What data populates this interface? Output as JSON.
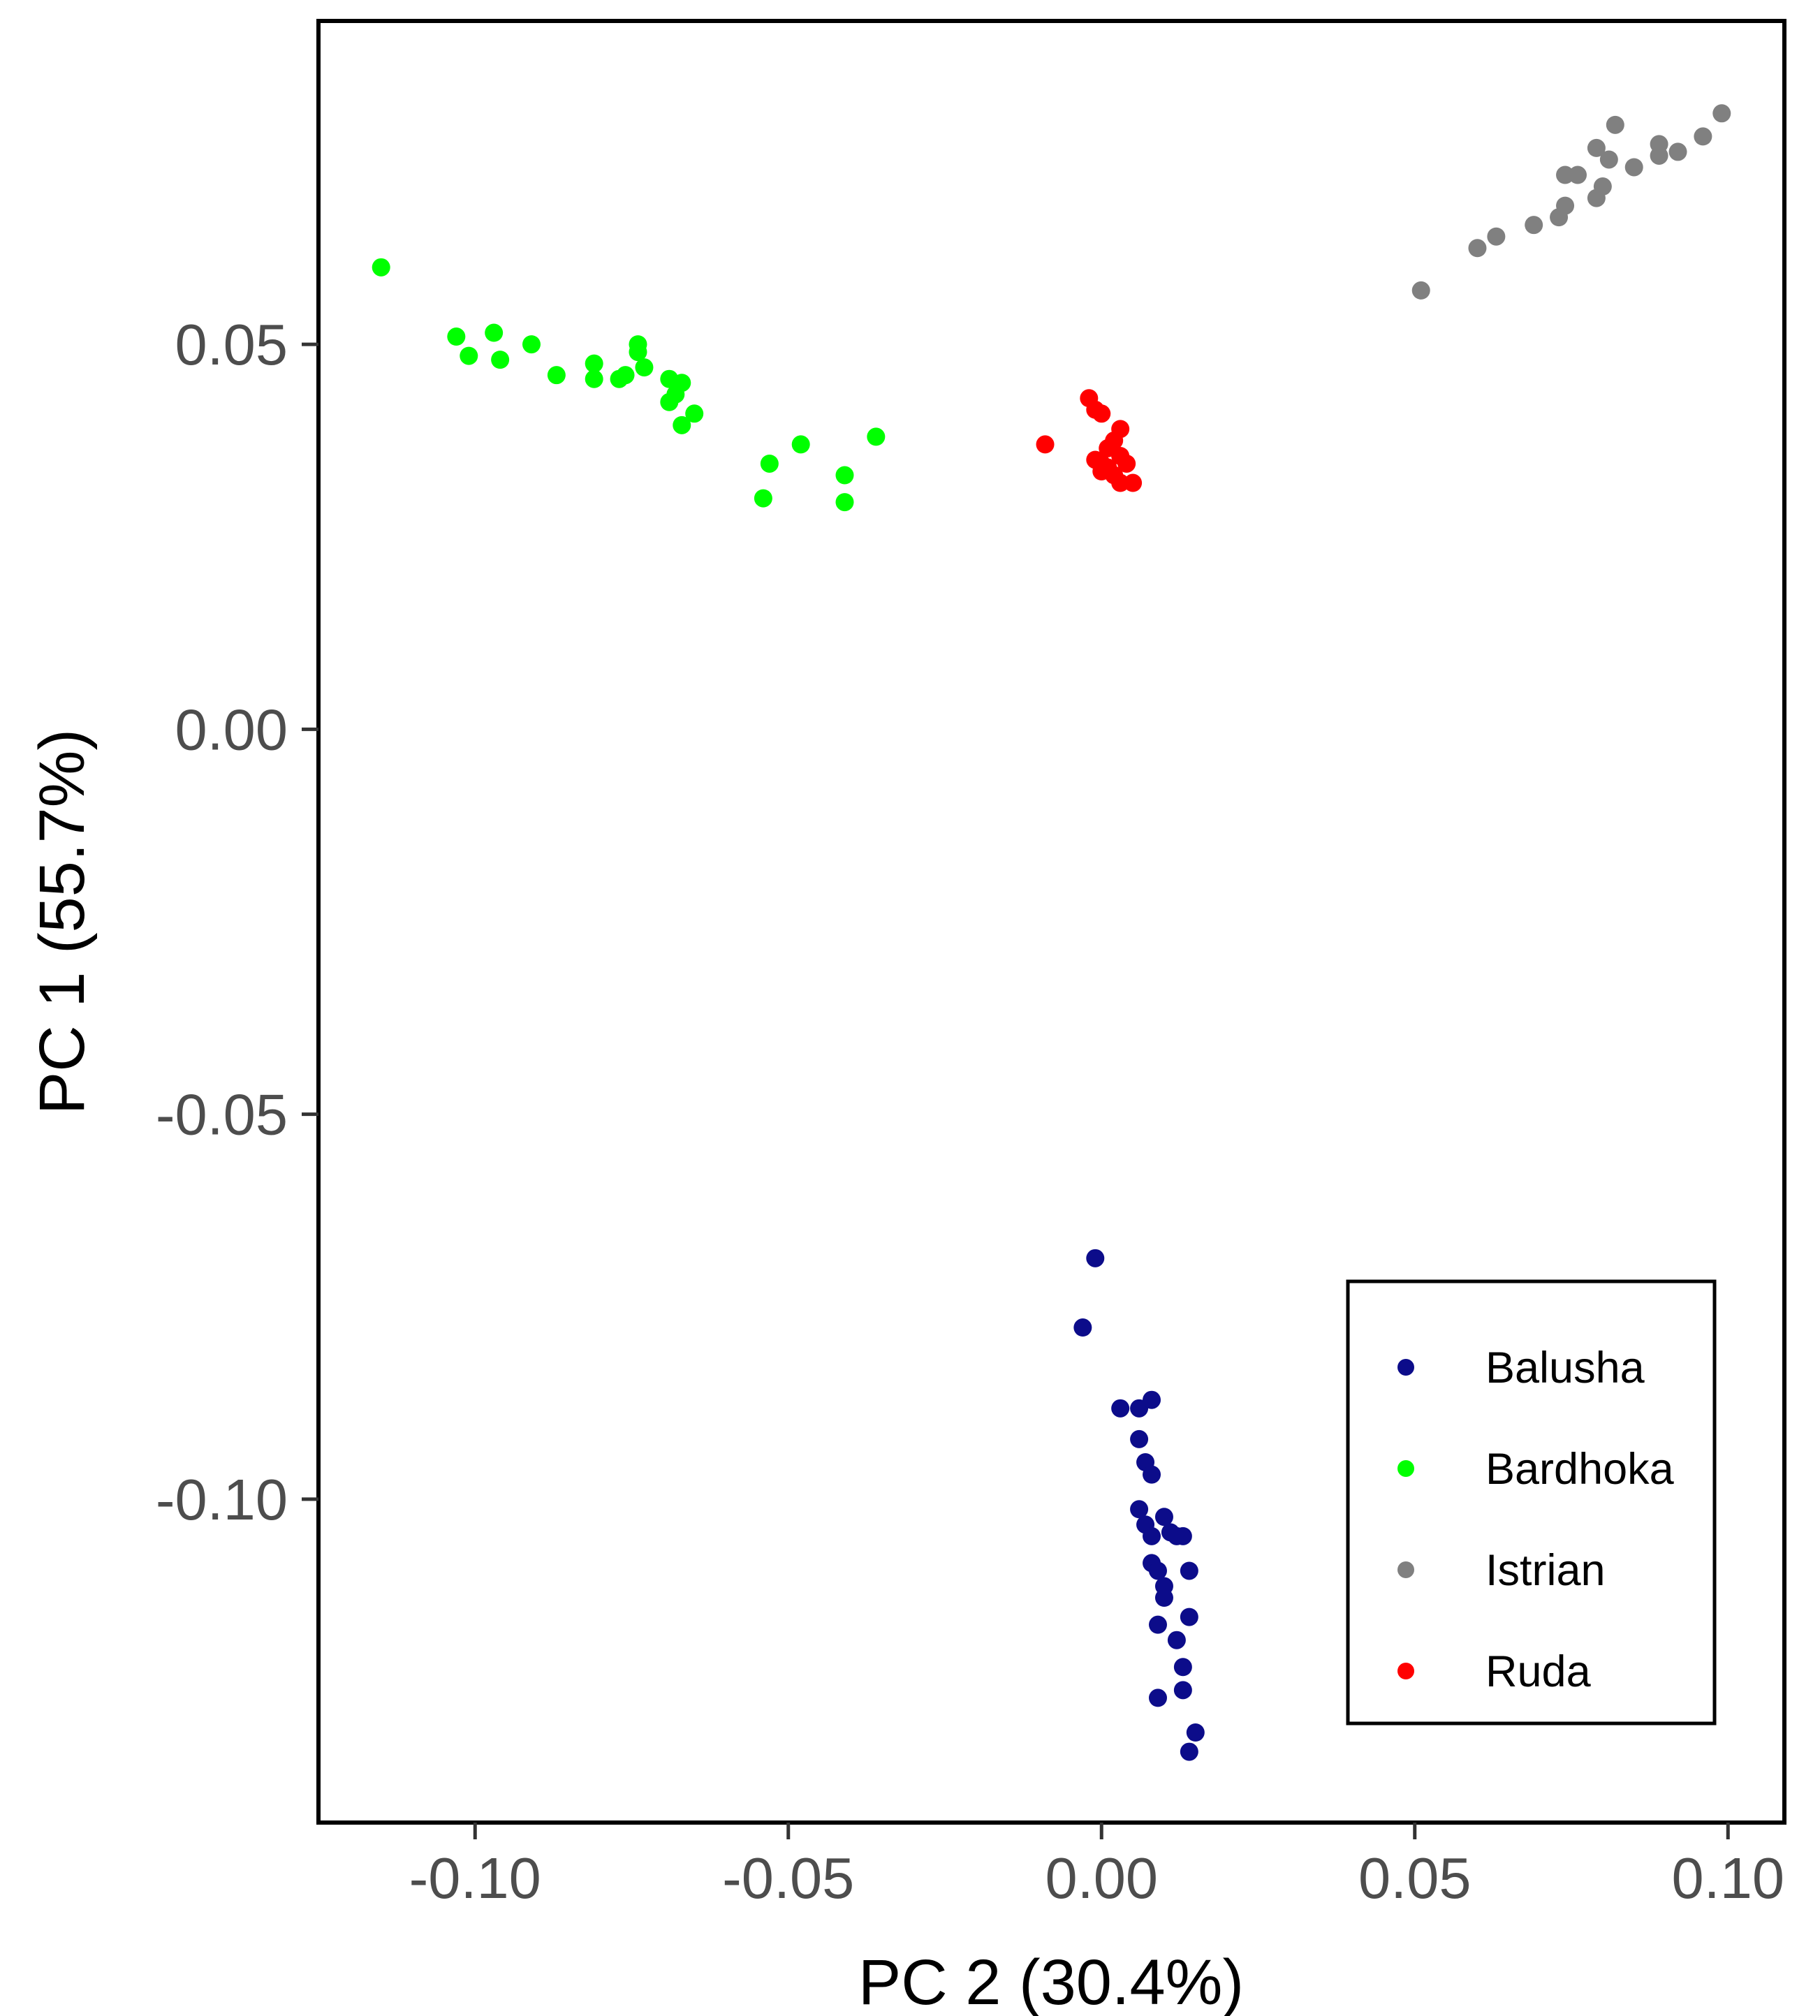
{
  "chart_data": {
    "type": "scatter",
    "title": "",
    "xlabel": "PC 2 (30.4%)",
    "ylabel": "PC 1 (55.7%)",
    "xlim": [
      -0.125,
      0.109
    ],
    "ylim": [
      -0.142,
      0.092
    ],
    "xticks": [
      -0.1,
      -0.05,
      0.0,
      0.05,
      0.1
    ],
    "yticks": [
      0.05,
      0.0,
      -0.05,
      -0.1
    ],
    "xtick_labels": [
      "-0.10",
      "-0.05",
      "0.00",
      "0.05",
      "0.10"
    ],
    "ytick_labels": [
      "0.05",
      "0.00",
      "-0.05",
      "-0.10"
    ],
    "grid": false,
    "legend_position": "bottom-right",
    "series": [
      {
        "name": "Balusha",
        "color": "#0c0c8a",
        "points": [
          [
            -0.001,
            -0.0687
          ],
          [
            -0.003,
            -0.0777
          ],
          [
            0.003,
            -0.0882
          ],
          [
            0.006,
            -0.0882
          ],
          [
            0.008,
            -0.0871
          ],
          [
            0.006,
            -0.0922
          ],
          [
            0.007,
            -0.0952
          ],
          [
            0.008,
            -0.0968
          ],
          [
            0.006,
            -0.1013
          ],
          [
            0.01,
            -0.1023
          ],
          [
            0.007,
            -0.1033
          ],
          [
            0.011,
            -0.1043
          ],
          [
            0.008,
            -0.1048
          ],
          [
            0.012,
            -0.1048
          ],
          [
            0.013,
            -0.1048
          ],
          [
            0.008,
            -0.1083
          ],
          [
            0.009,
            -0.1093
          ],
          [
            0.014,
            -0.1093
          ],
          [
            0.01,
            -0.1113
          ],
          [
            0.01,
            -0.1128
          ],
          [
            0.014,
            -0.1153
          ],
          [
            0.009,
            -0.1163
          ],
          [
            0.012,
            -0.1183
          ],
          [
            0.013,
            -0.1218
          ],
          [
            0.009,
            -0.1258
          ],
          [
            0.013,
            -0.1248
          ],
          [
            0.015,
            -0.1303
          ],
          [
            0.014,
            -0.1328
          ]
        ]
      },
      {
        "name": "Bardhoka",
        "color": "#00ff00",
        "points": [
          [
            -0.115,
            0.06
          ],
          [
            -0.103,
            0.051
          ],
          [
            -0.101,
            0.0485
          ],
          [
            -0.097,
            0.0515
          ],
          [
            -0.096,
            0.048
          ],
          [
            -0.091,
            0.05
          ],
          [
            -0.087,
            0.046
          ],
          [
            -0.081,
            0.0475
          ],
          [
            -0.081,
            0.0455
          ],
          [
            -0.077,
            0.0455
          ],
          [
            -0.076,
            0.046
          ],
          [
            -0.074,
            0.05
          ],
          [
            -0.074,
            0.049
          ],
          [
            -0.073,
            0.047
          ],
          [
            -0.069,
            0.0455
          ],
          [
            -0.067,
            0.045
          ],
          [
            -0.069,
            0.0425
          ],
          [
            -0.068,
            0.0435
          ],
          [
            -0.067,
            0.0395
          ],
          [
            -0.065,
            0.041
          ],
          [
            -0.054,
            0.03
          ],
          [
            -0.053,
            0.0345
          ],
          [
            -0.048,
            0.037
          ],
          [
            -0.041,
            0.033
          ],
          [
            -0.041,
            0.0295
          ],
          [
            -0.036,
            0.038
          ]
        ]
      },
      {
        "name": "Istrian",
        "color": "#808080",
        "points": [
          [
            0.051,
            0.057
          ],
          [
            0.06,
            0.0625
          ],
          [
            0.063,
            0.064
          ],
          [
            0.069,
            0.0655
          ],
          [
            0.073,
            0.0665
          ],
          [
            0.074,
            0.068
          ],
          [
            0.074,
            0.072
          ],
          [
            0.076,
            0.072
          ],
          [
            0.079,
            0.069
          ],
          [
            0.08,
            0.0705
          ],
          [
            0.079,
            0.0755
          ],
          [
            0.081,
            0.074
          ],
          [
            0.082,
            0.0785
          ],
          [
            0.085,
            0.073
          ],
          [
            0.089,
            0.076
          ],
          [
            0.089,
            0.0745
          ],
          [
            0.092,
            0.075
          ],
          [
            0.096,
            0.077
          ],
          [
            0.099,
            0.08
          ]
        ]
      },
      {
        "name": "Ruda",
        "color": "#ff0000",
        "points": [
          [
            -0.009,
            0.037
          ],
          [
            -0.002,
            0.043
          ],
          [
            -0.001,
            0.0415
          ],
          [
            0.0,
            0.041
          ],
          [
            0.003,
            0.039
          ],
          [
            0.001,
            0.0365
          ],
          [
            0.002,
            0.0375
          ],
          [
            0.003,
            0.0355
          ],
          [
            -0.001,
            0.035
          ],
          [
            0.0,
            0.0345
          ],
          [
            0.001,
            0.034
          ],
          [
            0.002,
            0.033
          ],
          [
            0.004,
            0.0345
          ],
          [
            0.003,
            0.032
          ],
          [
            0.005,
            0.032
          ],
          [
            0.0,
            0.0335
          ]
        ]
      }
    ]
  }
}
